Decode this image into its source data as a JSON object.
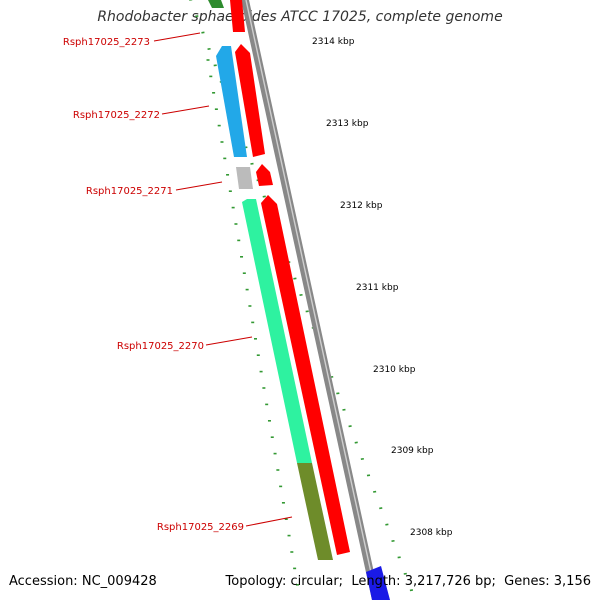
{
  "title": "Rhodobacter sphaeroides ATCC 17025, complete genome",
  "accession_label": "Accession:",
  "accession": "NC_009428",
  "topology_label": "Topology:",
  "topology": "circular",
  "length_label": "Length:",
  "length": "3,217,726 bp",
  "genes_label": "Genes:",
  "genes": "3,156",
  "colors": {
    "gene_label": "#cc0000",
    "ruler": "#339933",
    "backbone": "#888888",
    "cds": "#ff0000",
    "rsph2272": "#22a8e8",
    "rsph2271": "#bbbbbb",
    "rsph2270": "#2ef2a0",
    "rsph2269": "#6e8c2a",
    "rsph2273": "#2e8b2e",
    "next_gene": "#1a1ae6"
  },
  "scale_ticks": [
    {
      "label": "2314 kbp"
    },
    {
      "label": "2313 kbp"
    },
    {
      "label": "2312 kbp"
    },
    {
      "label": "2311 kbp"
    },
    {
      "label": "2310 kbp"
    },
    {
      "label": "2309 kbp"
    },
    {
      "label": "2308 kbp"
    }
  ],
  "genes_list": [
    {
      "label": "Rsph17025_2273"
    },
    {
      "label": "Rsph17025_2272"
    },
    {
      "label": "Rsph17025_2271"
    },
    {
      "label": "Rsph17025_2270"
    },
    {
      "label": "Rsph17025_2269"
    }
  ]
}
